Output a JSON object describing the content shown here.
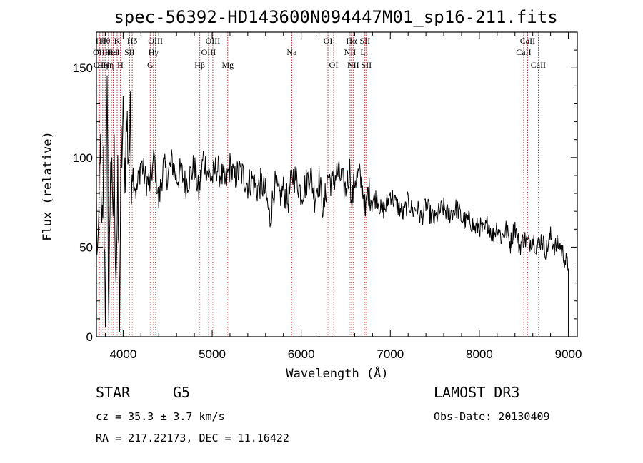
{
  "chart_data": {
    "type": "line",
    "title": "spec-56392-HD143600N094447M01_sp16-211.fits",
    "xlabel": "Wavelength (Å)",
    "ylabel": "Flux (relative)",
    "xlim": [
      3700,
      9100
    ],
    "ylim": [
      0,
      170
    ],
    "xticks": [
      4000,
      5000,
      6000,
      7000,
      8000,
      9000
    ],
    "yticks": [
      0,
      50,
      100,
      150
    ],
    "line_color": "#000000",
    "marker_color": "#b22222",
    "spectrum": {
      "x": [
        3700,
        3720,
        3740,
        3760,
        3780,
        3800,
        3820,
        3840,
        3860,
        3880,
        3900,
        3920,
        3940,
        3960,
        3980,
        4000,
        4020,
        4040,
        4060,
        4080,
        4100,
        4150,
        4200,
        4250,
        4300,
        4350,
        4400,
        4450,
        4500,
        4550,
        4600,
        4650,
        4700,
        4750,
        4800,
        4850,
        4900,
        4950,
        5000,
        5050,
        5100,
        5150,
        5200,
        5250,
        5300,
        5350,
        5400,
        5450,
        5500,
        5550,
        5600,
        5650,
        5700,
        5750,
        5800,
        5850,
        5900,
        5950,
        6000,
        6050,
        6100,
        6150,
        6200,
        6250,
        6300,
        6350,
        6400,
        6450,
        6500,
        6550,
        6563,
        6600,
        6650,
        6700,
        6720,
        6750,
        6800,
        6850,
        6900,
        6950,
        7000,
        7050,
        7100,
        7150,
        7200,
        7250,
        7300,
        7350,
        7400,
        7450,
        7500,
        7550,
        7600,
        7650,
        7700,
        7750,
        7800,
        7850,
        7900,
        7950,
        8000,
        8050,
        8100,
        8150,
        8200,
        8250,
        8300,
        8350,
        8400,
        8450,
        8500,
        8550,
        8600,
        8650,
        8700,
        8750,
        8800,
        8850,
        8900,
        8950,
        9000
      ],
      "y": [
        70,
        30,
        115,
        45,
        90,
        20,
        125,
        10,
        110,
        60,
        95,
        40,
        75,
        18,
        100,
        115,
        95,
        120,
        105,
        112,
        95,
        80,
        98,
        88,
        85,
        100,
        75,
        95,
        90,
        98,
        88,
        92,
        85,
        90,
        95,
        80,
        100,
        92,
        88,
        95,
        90,
        85,
        95,
        88,
        92,
        90,
        85,
        88,
        82,
        86,
        80,
        65,
        85,
        78,
        82,
        75,
        90,
        88,
        80,
        85,
        92,
        78,
        88,
        70,
        90,
        85,
        92,
        88,
        82,
        95,
        72,
        88,
        90,
        80,
        67,
        82,
        76,
        78,
        70,
        72,
        80,
        75,
        72,
        68,
        76,
        70,
        72,
        66,
        74,
        68,
        65,
        70,
        72,
        68,
        70,
        72,
        66,
        64,
        65,
        60,
        62,
        58,
        64,
        56,
        62,
        55,
        60,
        52,
        62,
        50,
        55,
        52,
        55,
        50,
        55,
        48,
        56,
        50,
        52,
        45,
        38
      ]
    },
    "line_markers": [
      {
        "x": 3727,
        "label": "OII",
        "row": 2
      },
      {
        "x": 3734,
        "label": "OII",
        "row": 3
      },
      {
        "x": 3750,
        "label": "Hθ",
        "row": 1
      },
      {
        "x": 3771,
        "label": "Hη",
        "row": 3
      },
      {
        "x": 3798,
        "label": "Hθ",
        "row": 1
      },
      {
        "x": 3835,
        "label": "Hη",
        "row": 3
      },
      {
        "x": 3869,
        "label": "HeI",
        "row": 2
      },
      {
        "x": 3889,
        "label": "HeI",
        "row": 2
      },
      {
        "x": 3933,
        "label": "K",
        "row": 1
      },
      {
        "x": 3968,
        "label": "H",
        "row": 3
      },
      {
        "x": 4072,
        "label": "SII",
        "row": 2
      },
      {
        "x": 4102,
        "label": "Hδ",
        "row": 1
      },
      {
        "x": 4304,
        "label": "G",
        "row": 3
      },
      {
        "x": 4340,
        "label": "Hγ",
        "row": 2
      },
      {
        "x": 4363,
        "label": "OIII",
        "row": 1
      },
      {
        "x": 4861,
        "label": "Hβ",
        "row": 3
      },
      {
        "x": 4959,
        "label": "OIII",
        "row": 2
      },
      {
        "x": 5007,
        "label": "OIII",
        "row": 1
      },
      {
        "x": 5175,
        "label": "Mg",
        "row": 3
      },
      {
        "x": 5894,
        "label": "Na",
        "row": 2
      },
      {
        "x": 6300,
        "label": "OI",
        "row": 1
      },
      {
        "x": 6364,
        "label": "OI",
        "row": 3
      },
      {
        "x": 6548,
        "label": "NII",
        "row": 2
      },
      {
        "x": 6563,
        "label": "Hα",
        "row": 1
      },
      {
        "x": 6583,
        "label": "NII",
        "row": 3
      },
      {
        "x": 6707,
        "label": "Li",
        "row": 2
      },
      {
        "x": 6716,
        "label": "SII",
        "row": 1
      },
      {
        "x": 6731,
        "label": "SII",
        "row": 3
      },
      {
        "x": 8498,
        "label": "CaII",
        "row": 2
      },
      {
        "x": 8542,
        "label": "CaII",
        "row": 1
      },
      {
        "x": 8662,
        "label": "CaII",
        "row": 3
      }
    ]
  },
  "info": {
    "class": "STAR",
    "subclass": "G5",
    "survey": "LAMOST DR3",
    "cz": "cz = 35.3 ± 3.7 km/s",
    "obs_date": "Obs-Date: 20130409",
    "radec": "RA = 217.22173, DEC =  11.16422"
  }
}
